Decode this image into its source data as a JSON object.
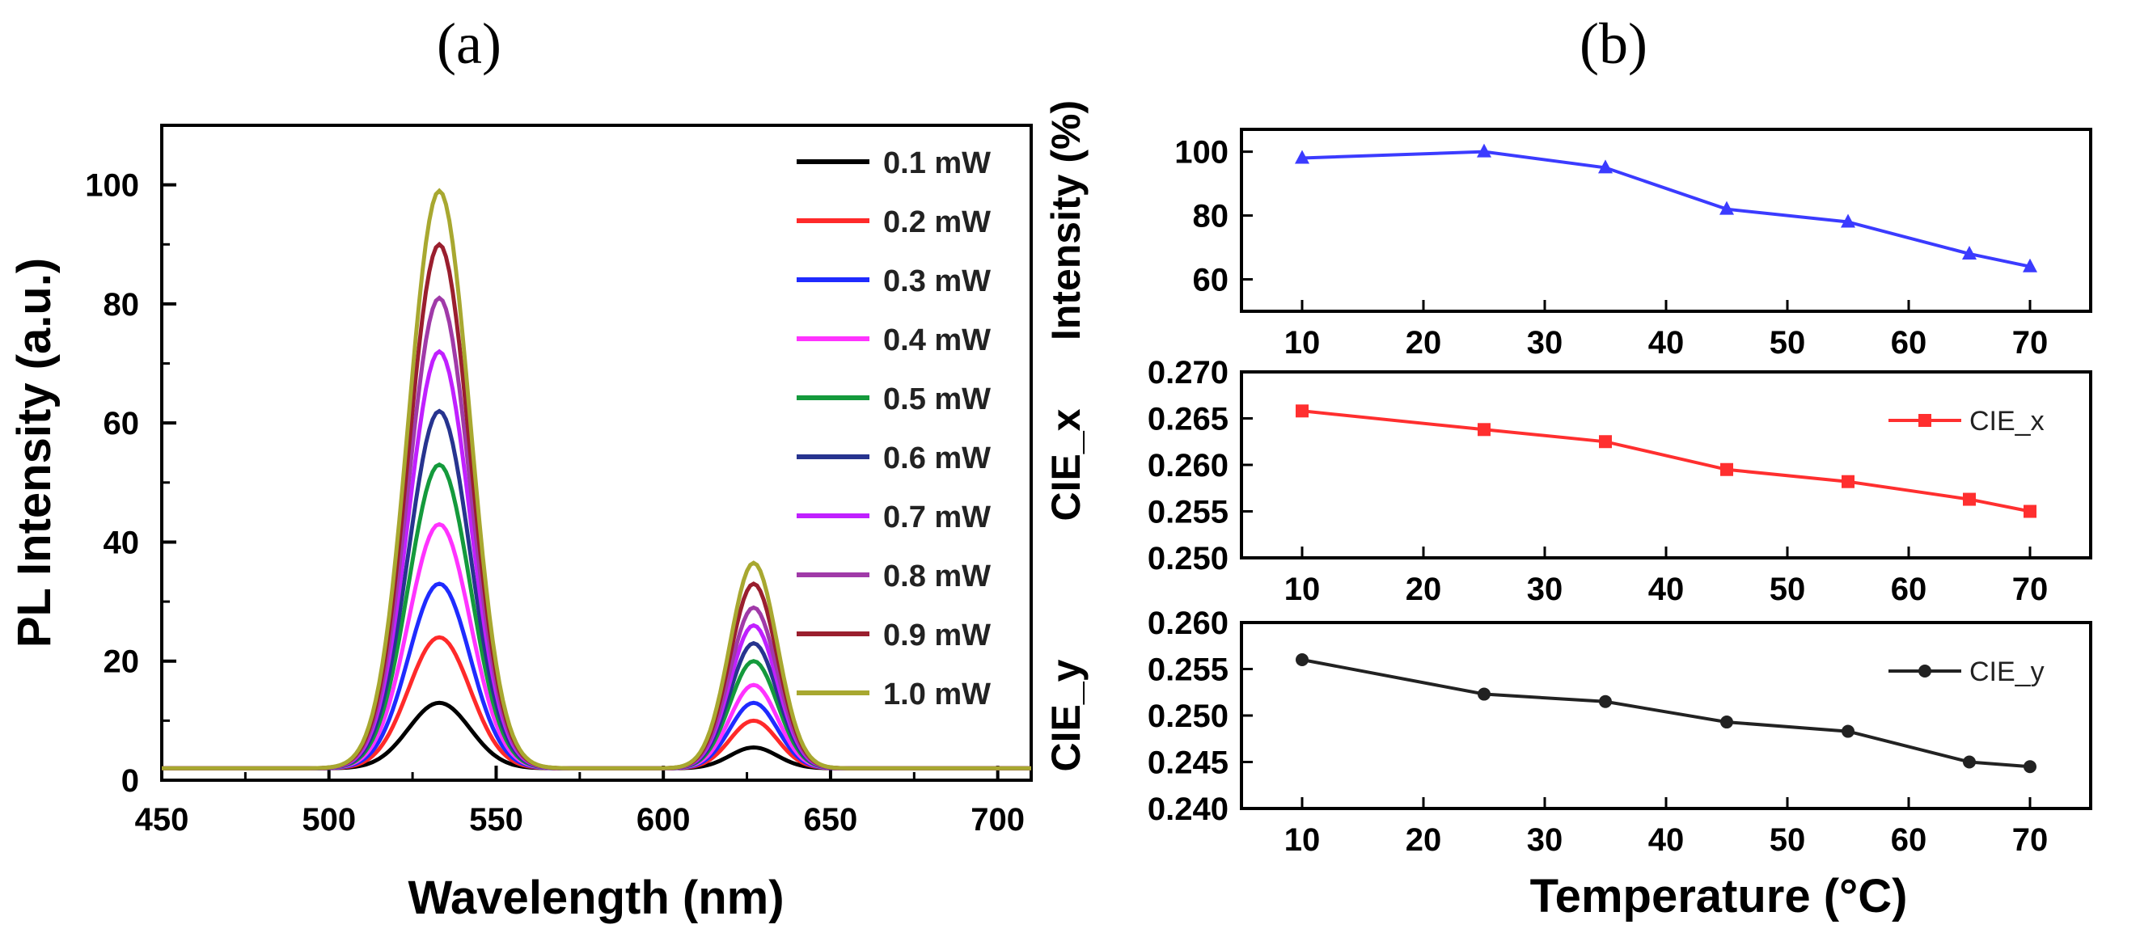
{
  "figure": {
    "panel_a_label": "(a)",
    "panel_b_label": "(b)"
  },
  "chart_data": [
    {
      "type": "line",
      "panel": "(a)",
      "xlabel": "Wavelength (nm)",
      "ylabel": "PL Intensity (a.u.)",
      "xlim": [
        450,
        710
      ],
      "ylim": [
        0,
        110
      ],
      "xticks": [
        "450",
        "500",
        "550",
        "600",
        "650",
        "700"
      ],
      "yticks": [
        "0",
        "20",
        "40",
        "60",
        "80",
        "100"
      ],
      "legend_position": "top-right",
      "peaks": [
        {
          "center_nm": 533,
          "width_nm": 13
        },
        {
          "center_nm": 627,
          "width_nm": 10
        }
      ],
      "baseline": 2,
      "series": [
        {
          "name": "0.1 mW",
          "color": "#000000",
          "peak_green": 13,
          "peak_red": 5.5
        },
        {
          "name": "0.2 mW",
          "color": "#ff2a2a",
          "peak_green": 24,
          "peak_red": 10
        },
        {
          "name": "0.3 mW",
          "color": "#1f2bff",
          "peak_green": 33,
          "peak_red": 13
        },
        {
          "name": "0.4 mW",
          "color": "#ff33ff",
          "peak_green": 43,
          "peak_red": 16
        },
        {
          "name": "0.5 mW",
          "color": "#149a3c",
          "peak_green": 53,
          "peak_red": 20
        },
        {
          "name": "0.6 mW",
          "color": "#27348f",
          "peak_green": 62,
          "peak_red": 23
        },
        {
          "name": "0.7 mW",
          "color": "#c020ff",
          "peak_green": 72,
          "peak_red": 26
        },
        {
          "name": "0.8 mW",
          "color": "#a03aa8",
          "peak_green": 81,
          "peak_red": 29
        },
        {
          "name": "0.9 mW",
          "color": "#9a1f2e",
          "peak_green": 90,
          "peak_red": 33
        },
        {
          "name": "1.0 mW",
          "color": "#a8a830",
          "peak_green": 99,
          "peak_red": 36.5
        }
      ]
    },
    {
      "type": "line",
      "panel": "(b) top",
      "xlabel": "",
      "ylabel": "Intensity (%)",
      "xlim": [
        5,
        75
      ],
      "ylim": [
        50,
        107
      ],
      "xticks": [
        "10",
        "20",
        "30",
        "40",
        "50",
        "60",
        "70"
      ],
      "yticks": [
        "60",
        "80",
        "100"
      ],
      "marker": "triangle",
      "color": "#3b3bff",
      "series": [
        {
          "x": [
            10,
            25,
            35,
            45,
            55,
            65,
            70
          ],
          "values": [
            98,
            100,
            95,
            82,
            78,
            68,
            64
          ]
        }
      ]
    },
    {
      "type": "line",
      "panel": "(b) middle",
      "xlabel": "",
      "ylabel": "CIE_x",
      "xlim": [
        5,
        75
      ],
      "ylim": [
        0.25,
        0.27
      ],
      "xticks": [
        "10",
        "20",
        "30",
        "40",
        "50",
        "60",
        "70"
      ],
      "yticks": [
        "0.250",
        "0.255",
        "0.260",
        "0.265",
        "0.270"
      ],
      "marker": "square",
      "color": "#ff2f2f",
      "legend_position": "top-right",
      "series": [
        {
          "name": "CIE_x",
          "x": [
            10,
            25,
            35,
            45,
            55,
            65,
            70
          ],
          "values": [
            0.2658,
            0.2638,
            0.2625,
            0.2595,
            0.2582,
            0.2563,
            0.255
          ]
        }
      ]
    },
    {
      "type": "line",
      "panel": "(b) bottom",
      "xlabel": "Temperature (°C)",
      "ylabel": "CIE_y",
      "xlim": [
        5,
        75
      ],
      "ylim": [
        0.24,
        0.26
      ],
      "xticks": [
        "10",
        "20",
        "30",
        "40",
        "50",
        "60",
        "70"
      ],
      "yticks": [
        "0.240",
        "0.245",
        "0.250",
        "0.255",
        "0.260"
      ],
      "marker": "circle",
      "color": "#222222",
      "legend_position": "top-right",
      "series": [
        {
          "name": "CIE_y",
          "x": [
            10,
            25,
            35,
            45,
            55,
            65,
            70
          ],
          "values": [
            0.256,
            0.2523,
            0.2515,
            0.2493,
            0.2483,
            0.245,
            0.2445
          ]
        }
      ]
    }
  ]
}
